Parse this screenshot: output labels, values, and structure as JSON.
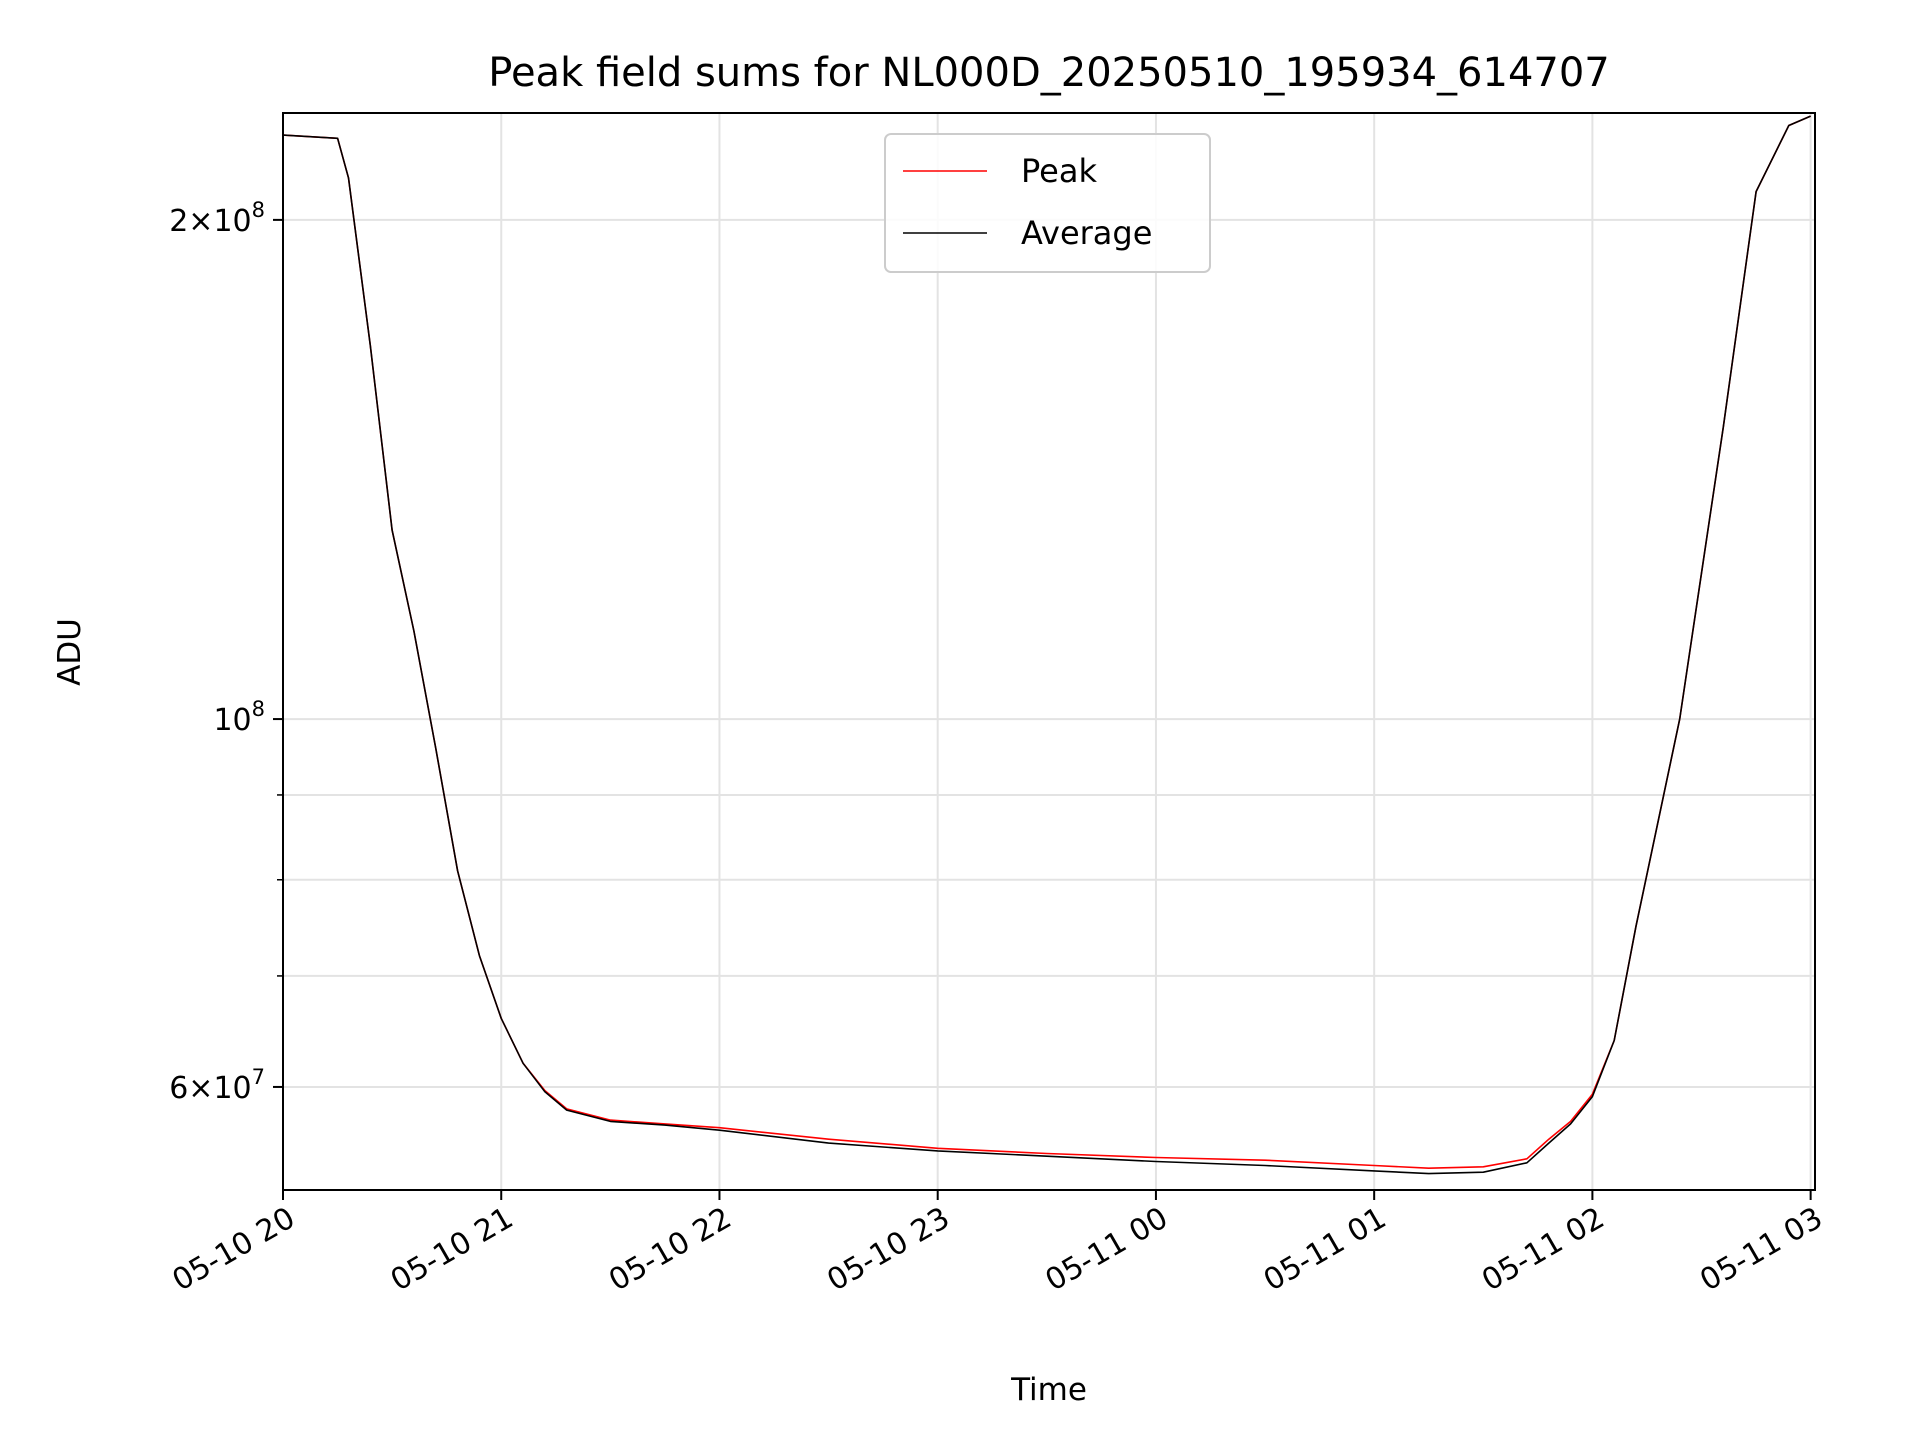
{
  "chart_data": {
    "type": "line",
    "title": "Peak field sums for NL000D_20250510_195934_614707",
    "xlabel": "Time",
    "ylabel": "ADU",
    "x_unit": "hours since 05-10 20:00",
    "xlim": [
      0,
      7.02
    ],
    "ylim": [
      52000000,
      232000000
    ],
    "yscale": "log",
    "grid": true,
    "legend_position": "top-center",
    "x_ticks": [
      {
        "value": 0,
        "label": "05-10 20"
      },
      {
        "value": 1,
        "label": "05-10 21"
      },
      {
        "value": 2,
        "label": "05-10 22"
      },
      {
        "value": 3,
        "label": "05-10 23"
      },
      {
        "value": 4,
        "label": "05-11 00"
      },
      {
        "value": 5,
        "label": "05-11 01"
      },
      {
        "value": 6,
        "label": "05-11 02"
      },
      {
        "value": 7,
        "label": "05-11 03"
      }
    ],
    "y_major_ticks": [
      {
        "value": 60000000,
        "base": "6×10",
        "exp": "7"
      },
      {
        "value": 100000000,
        "base": "10",
        "exp": "8"
      },
      {
        "value": 200000000,
        "base": "2×10",
        "exp": "8"
      }
    ],
    "y_minor_grid": [
      70000000,
      80000000,
      90000000
    ],
    "series": [
      {
        "name": "Peak",
        "color": "#ff0000",
        "x": [
          0,
          0.25,
          0.3,
          0.4,
          0.5,
          0.6,
          0.7,
          0.8,
          0.9,
          1.0,
          1.1,
          1.2,
          1.3,
          1.5,
          1.75,
          2.0,
          2.5,
          3.0,
          3.5,
          4.0,
          4.5,
          5.0,
          5.25,
          5.5,
          5.7,
          5.8,
          5.9,
          6.0,
          6.1,
          6.2,
          6.4,
          6.6,
          6.75,
          6.9,
          7.0
        ],
        "values": [
          225000000,
          224000000,
          212000000,
          168000000,
          130000000,
          113000000,
          96000000,
          81000000,
          72000000,
          66000000,
          62000000,
          59700000,
          58200000,
          57300000,
          57000000,
          56700000,
          55800000,
          55100000,
          54700000,
          54400000,
          54200000,
          53800000,
          53600000,
          53700000,
          54300000,
          55800000,
          57200000,
          59400000,
          64000000,
          75000000,
          100000000,
          150000000,
          208000000,
          228000000,
          231000000
        ]
      },
      {
        "name": "Average",
        "color": "#000000",
        "x": [
          0,
          0.25,
          0.3,
          0.4,
          0.5,
          0.6,
          0.7,
          0.8,
          0.9,
          1.0,
          1.1,
          1.2,
          1.3,
          1.5,
          1.75,
          2.0,
          2.5,
          3.0,
          3.5,
          4.0,
          4.5,
          5.0,
          5.25,
          5.5,
          5.7,
          5.8,
          5.9,
          6.0,
          6.1,
          6.2,
          6.4,
          6.6,
          6.75,
          6.9,
          7.0
        ],
        "values": [
          225000000,
          224000000,
          212000000,
          168000000,
          130000000,
          113000000,
          96000000,
          81000000,
          72000000,
          66000000,
          62000000,
          59600000,
          58100000,
          57200000,
          56900000,
          56500000,
          55500000,
          54900000,
          54500000,
          54100000,
          53800000,
          53400000,
          53200000,
          53300000,
          54000000,
          55500000,
          57000000,
          59200000,
          64000000,
          75000000,
          100000000,
          150000000,
          208000000,
          228000000,
          231000000
        ]
      }
    ]
  }
}
